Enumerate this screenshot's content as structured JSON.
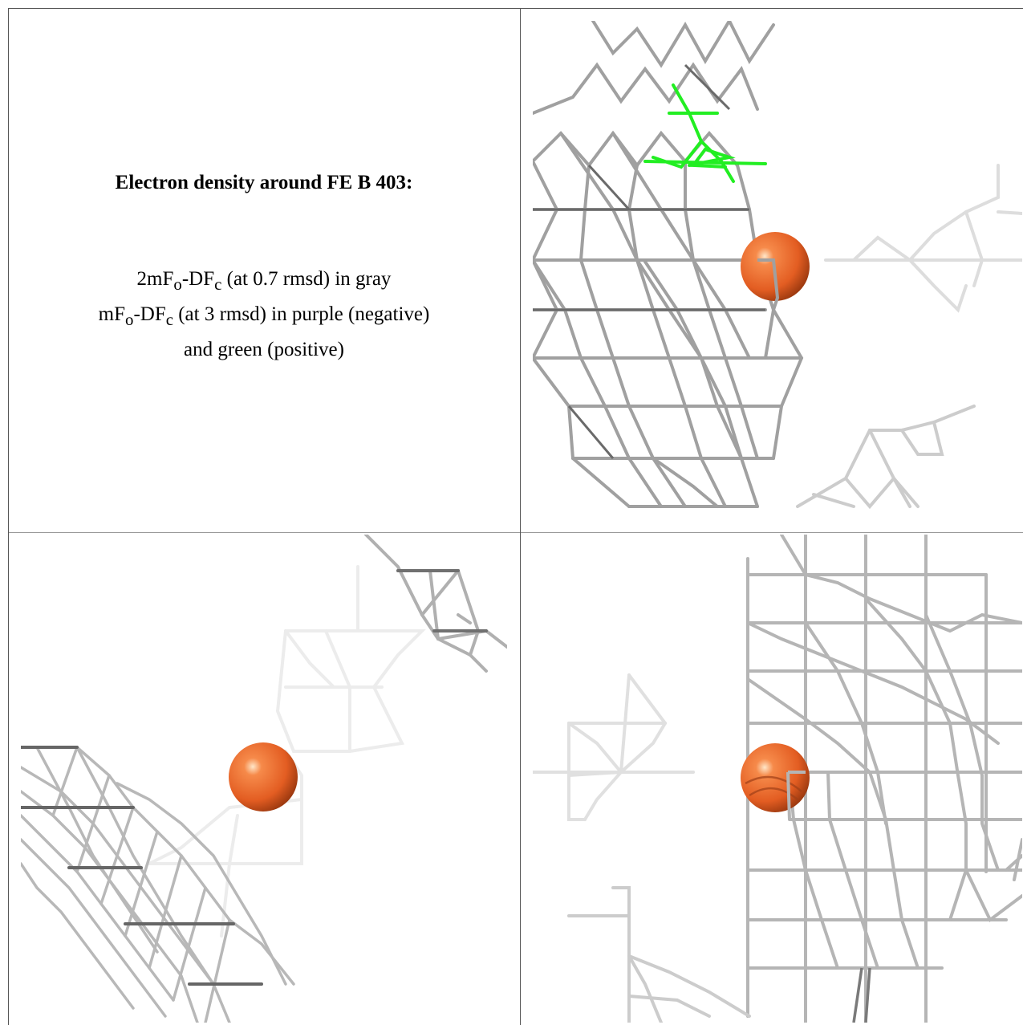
{
  "caption": {
    "title": "Electron density around FE B 403:",
    "line1_a": "2mF",
    "line1_sub1": "o",
    "line1_b": "-DF",
    "line1_sub2": "c",
    "line1_c": " (at 0.7 rmsd) in gray",
    "line2_a": "mF",
    "line2_sub1": "o",
    "line2_b": "-DF",
    "line2_sub2": "c",
    "line2_c": " (at 3 rmsd) in purple (negative)",
    "line3": "and green (positive)"
  },
  "colors": {
    "mesh_gray": "#9a9a9a",
    "mesh_dark": "#666666",
    "mesh_light": "#d8d8d8",
    "positive_green": "#22ee22",
    "iron_orange": "#e8652a"
  },
  "panels": [
    {
      "name": "view-top-right",
      "atom": "FE"
    },
    {
      "name": "view-bottom-left",
      "atom": "FE"
    },
    {
      "name": "view-bottom-right",
      "atom": "FE"
    }
  ]
}
